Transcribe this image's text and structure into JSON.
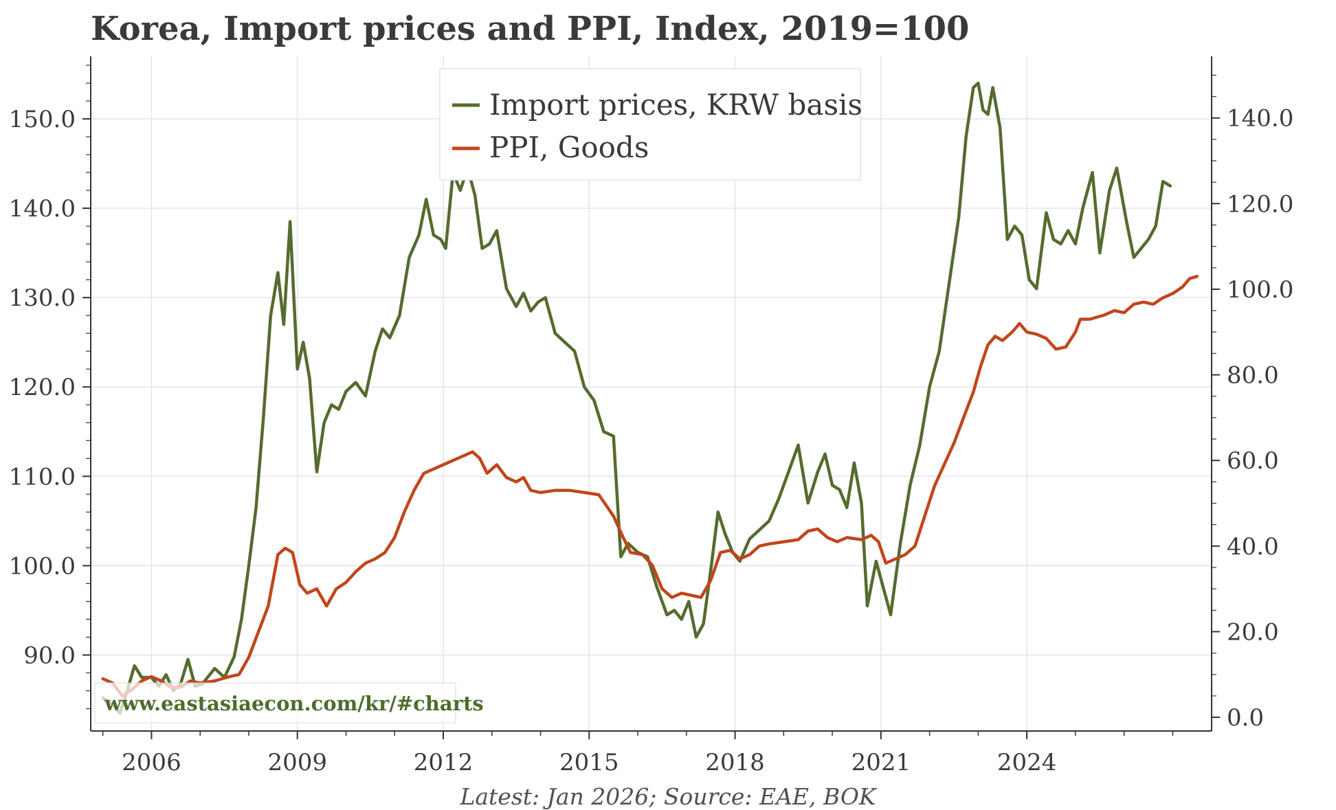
{
  "chart_data": {
    "type": "line",
    "title": "Korea, Import prices and PPI, Index, 2019=100",
    "footnote": "Latest: Jan 2026; Source: EAE, BOK",
    "watermark": "www.eastasiaecon.com/kr/#charts",
    "x_ticks": [
      "2006",
      "2009",
      "2012",
      "2015",
      "2018",
      "2021",
      "2024"
    ],
    "x_range": [
      2004.75,
      2027.8
    ],
    "left_axis": {
      "range": [
        81.5,
        157.0
      ],
      "ticks": [
        "90.0",
        "100.0",
        "110.0",
        "120.0",
        "130.0",
        "140.0",
        "150.0"
      ]
    },
    "right_axis": {
      "range": [
        -3.2,
        154.4
      ],
      "ticks": [
        "0.0",
        "20.0",
        "40.0",
        "60.0",
        "80.0",
        "100.0",
        "120.0",
        "140.0"
      ]
    },
    "series": [
      {
        "name": "Import prices, KRW basis",
        "axis": "left",
        "color": "#556b2f",
        "points": [
          [
            2005.0,
            85.2
          ],
          [
            2005.2,
            84.5
          ],
          [
            2005.35,
            83.5
          ],
          [
            2005.5,
            86.0
          ],
          [
            2005.65,
            88.8
          ],
          [
            2005.8,
            87.5
          ],
          [
            2006.0,
            87.5
          ],
          [
            2006.15,
            86.5
          ],
          [
            2006.3,
            87.8
          ],
          [
            2006.45,
            86.0
          ],
          [
            2006.6,
            86.8
          ],
          [
            2006.75,
            89.5
          ],
          [
            2006.9,
            86.5
          ],
          [
            2007.05,
            86.8
          ],
          [
            2007.3,
            88.5
          ],
          [
            2007.5,
            87.5
          ],
          [
            2007.7,
            89.8
          ],
          [
            2007.85,
            94.0
          ],
          [
            2008.0,
            100.0
          ],
          [
            2008.15,
            106.5
          ],
          [
            2008.3,
            116.5
          ],
          [
            2008.45,
            128.0
          ],
          [
            2008.6,
            132.8
          ],
          [
            2008.72,
            127.0
          ],
          [
            2008.85,
            138.5
          ],
          [
            2009.0,
            122.0
          ],
          [
            2009.12,
            125.0
          ],
          [
            2009.25,
            121.0
          ],
          [
            2009.4,
            110.5
          ],
          [
            2009.55,
            116.0
          ],
          [
            2009.7,
            118.0
          ],
          [
            2009.85,
            117.5
          ],
          [
            2010.0,
            119.5
          ],
          [
            2010.2,
            120.5
          ],
          [
            2010.4,
            119.0
          ],
          [
            2010.6,
            124.0
          ],
          [
            2010.75,
            126.5
          ],
          [
            2010.9,
            125.5
          ],
          [
            2011.1,
            128.0
          ],
          [
            2011.3,
            134.5
          ],
          [
            2011.5,
            137.0
          ],
          [
            2011.65,
            141.0
          ],
          [
            2011.8,
            137.0
          ],
          [
            2011.95,
            136.5
          ],
          [
            2012.05,
            135.5
          ],
          [
            2012.2,
            144.0
          ],
          [
            2012.35,
            142.0
          ],
          [
            2012.5,
            144.5
          ],
          [
            2012.65,
            141.5
          ],
          [
            2012.8,
            135.5
          ],
          [
            2012.95,
            136.0
          ],
          [
            2013.1,
            137.5
          ],
          [
            2013.3,
            131.0
          ],
          [
            2013.5,
            129.0
          ],
          [
            2013.65,
            130.5
          ],
          [
            2013.8,
            128.5
          ],
          [
            2013.95,
            129.5
          ],
          [
            2014.1,
            130.0
          ],
          [
            2014.3,
            126.0
          ],
          [
            2014.5,
            125.0
          ],
          [
            2014.7,
            124.0
          ],
          [
            2014.9,
            120.0
          ],
          [
            2015.1,
            118.5
          ],
          [
            2015.3,
            115.0
          ],
          [
            2015.5,
            114.5
          ],
          [
            2015.65,
            101.0
          ],
          [
            2015.8,
            102.5
          ],
          [
            2016.0,
            101.5
          ],
          [
            2016.2,
            101.0
          ],
          [
            2016.4,
            97.5
          ],
          [
            2016.6,
            94.5
          ],
          [
            2016.75,
            95.0
          ],
          [
            2016.9,
            94.0
          ],
          [
            2017.05,
            96.0
          ],
          [
            2017.2,
            92.0
          ],
          [
            2017.35,
            93.5
          ],
          [
            2017.5,
            99.5
          ],
          [
            2017.65,
            106.0
          ],
          [
            2017.8,
            103.5
          ],
          [
            2017.95,
            101.5
          ],
          [
            2018.1,
            100.5
          ],
          [
            2018.3,
            103.0
          ],
          [
            2018.5,
            104.0
          ],
          [
            2018.7,
            105.0
          ],
          [
            2018.9,
            107.5
          ],
          [
            2019.1,
            110.5
          ],
          [
            2019.3,
            113.5
          ],
          [
            2019.5,
            107.0
          ],
          [
            2019.7,
            110.5
          ],
          [
            2019.85,
            112.5
          ],
          [
            2020.0,
            109.0
          ],
          [
            2020.15,
            108.5
          ],
          [
            2020.3,
            106.5
          ],
          [
            2020.45,
            111.5
          ],
          [
            2020.6,
            107.0
          ],
          [
            2020.72,
            95.5
          ],
          [
            2020.9,
            100.5
          ],
          [
            2021.05,
            97.5
          ],
          [
            2021.2,
            94.5
          ],
          [
            2021.4,
            102.5
          ],
          [
            2021.6,
            109.0
          ],
          [
            2021.8,
            113.5
          ],
          [
            2022.0,
            120.0
          ],
          [
            2022.2,
            124.0
          ],
          [
            2022.4,
            131.5
          ],
          [
            2022.6,
            139.0
          ],
          [
            2022.75,
            148.0
          ],
          [
            2022.9,
            153.5
          ],
          [
            2023.0,
            154.0
          ],
          [
            2023.1,
            151.0
          ],
          [
            2023.2,
            150.5
          ],
          [
            2023.3,
            153.5
          ],
          [
            2023.45,
            149.0
          ],
          [
            2023.6,
            136.5
          ],
          [
            2023.75,
            138.0
          ],
          [
            2023.9,
            137.0
          ],
          [
            2024.05,
            132.0
          ],
          [
            2024.2,
            131.0
          ],
          [
            2024.4,
            139.5
          ],
          [
            2024.55,
            136.5
          ],
          [
            2024.7,
            136.0
          ],
          [
            2024.85,
            137.5
          ],
          [
            2025.0,
            136.0
          ],
          [
            2025.15,
            140.0
          ],
          [
            2025.35,
            144.0
          ],
          [
            2025.5,
            135.0
          ],
          [
            2025.7,
            142.0
          ],
          [
            2025.85,
            144.5
          ],
          [
            2026.05,
            138.5
          ],
          [
            2026.2,
            134.5
          ],
          [
            2026.35,
            135.5
          ],
          [
            2026.5,
            136.5
          ],
          [
            2026.65,
            138.0
          ],
          [
            2026.8,
            143.0
          ],
          [
            2026.95,
            142.5
          ]
        ]
      },
      {
        "name": "PPI, Goods",
        "axis": "right",
        "color": "#c0461b",
        "points": [
          [
            2005.0,
            9.0
          ],
          [
            2005.2,
            8.0
          ],
          [
            2005.4,
            5.0
          ],
          [
            2005.6,
            6.5
          ],
          [
            2005.8,
            8.5
          ],
          [
            2006.0,
            9.5
          ],
          [
            2006.2,
            8.5
          ],
          [
            2006.4,
            7.0
          ],
          [
            2006.6,
            7.0
          ],
          [
            2006.8,
            8.5
          ],
          [
            2007.0,
            8.0
          ],
          [
            2007.3,
            8.5
          ],
          [
            2007.6,
            9.5
          ],
          [
            2007.8,
            10.0
          ],
          [
            2008.0,
            14.0
          ],
          [
            2008.2,
            20.0
          ],
          [
            2008.4,
            26.0
          ],
          [
            2008.6,
            38.0
          ],
          [
            2008.75,
            39.5
          ],
          [
            2008.9,
            38.5
          ],
          [
            2009.05,
            31.0
          ],
          [
            2009.2,
            29.0
          ],
          [
            2009.4,
            30.0
          ],
          [
            2009.6,
            26.0
          ],
          [
            2009.8,
            30.0
          ],
          [
            2010.0,
            31.5
          ],
          [
            2010.2,
            34.0
          ],
          [
            2010.4,
            36.0
          ],
          [
            2010.6,
            37.0
          ],
          [
            2010.8,
            38.5
          ],
          [
            2011.0,
            42.0
          ],
          [
            2011.2,
            48.0
          ],
          [
            2011.4,
            53.0
          ],
          [
            2011.6,
            57.0
          ],
          [
            2011.8,
            58.0
          ],
          [
            2012.0,
            59.0
          ],
          [
            2012.2,
            60.0
          ],
          [
            2012.4,
            61.0
          ],
          [
            2012.6,
            62.0
          ],
          [
            2012.75,
            60.5
          ],
          [
            2012.9,
            57.0
          ],
          [
            2013.1,
            59.0
          ],
          [
            2013.3,
            56.0
          ],
          [
            2013.5,
            55.0
          ],
          [
            2013.65,
            56.0
          ],
          [
            2013.8,
            53.0
          ],
          [
            2014.0,
            52.5
          ],
          [
            2014.3,
            53.0
          ],
          [
            2014.6,
            53.0
          ],
          [
            2014.9,
            52.5
          ],
          [
            2015.2,
            52.0
          ],
          [
            2015.5,
            47.0
          ],
          [
            2015.7,
            42.0
          ],
          [
            2015.85,
            38.5
          ],
          [
            2016.1,
            38.0
          ],
          [
            2016.3,
            35.5
          ],
          [
            2016.5,
            30.0
          ],
          [
            2016.7,
            28.0
          ],
          [
            2016.9,
            29.0
          ],
          [
            2017.1,
            28.5
          ],
          [
            2017.3,
            28.0
          ],
          [
            2017.5,
            32.0
          ],
          [
            2017.7,
            38.5
          ],
          [
            2017.9,
            39.0
          ],
          [
            2018.1,
            37.0
          ],
          [
            2018.3,
            38.0
          ],
          [
            2018.5,
            40.0
          ],
          [
            2018.7,
            40.5
          ],
          [
            2019.0,
            41.0
          ],
          [
            2019.3,
            41.5
          ],
          [
            2019.5,
            43.5
          ],
          [
            2019.7,
            44.0
          ],
          [
            2019.9,
            42.0
          ],
          [
            2020.1,
            41.0
          ],
          [
            2020.3,
            42.0
          ],
          [
            2020.6,
            41.5
          ],
          [
            2020.8,
            42.5
          ],
          [
            2020.95,
            41.0
          ],
          [
            2021.1,
            36.0
          ],
          [
            2021.3,
            37.0
          ],
          [
            2021.5,
            38.0
          ],
          [
            2021.7,
            40.0
          ],
          [
            2021.9,
            47.0
          ],
          [
            2022.1,
            54.0
          ],
          [
            2022.3,
            59.0
          ],
          [
            2022.5,
            64.0
          ],
          [
            2022.7,
            70.0
          ],
          [
            2022.9,
            76.0
          ],
          [
            2023.05,
            82.0
          ],
          [
            2023.2,
            87.0
          ],
          [
            2023.35,
            89.0
          ],
          [
            2023.5,
            88.0
          ],
          [
            2023.7,
            90.0
          ],
          [
            2023.85,
            92.0
          ],
          [
            2024.0,
            90.0
          ],
          [
            2024.2,
            89.5
          ],
          [
            2024.4,
            88.5
          ],
          [
            2024.6,
            86.0
          ],
          [
            2024.8,
            86.5
          ],
          [
            2025.0,
            90.0
          ],
          [
            2025.1,
            93.0
          ],
          [
            2025.3,
            93.0
          ],
          [
            2025.6,
            94.0
          ],
          [
            2025.8,
            95.0
          ],
          [
            2026.0,
            94.5
          ],
          [
            2026.2,
            96.5
          ],
          [
            2026.4,
            97.0
          ],
          [
            2026.6,
            96.5
          ],
          [
            2026.8,
            98.0
          ],
          [
            2027.0,
            99.0
          ],
          [
            2027.2,
            100.5
          ],
          [
            2027.35,
            102.5
          ],
          [
            2027.5,
            103.0
          ]
        ]
      }
    ]
  }
}
